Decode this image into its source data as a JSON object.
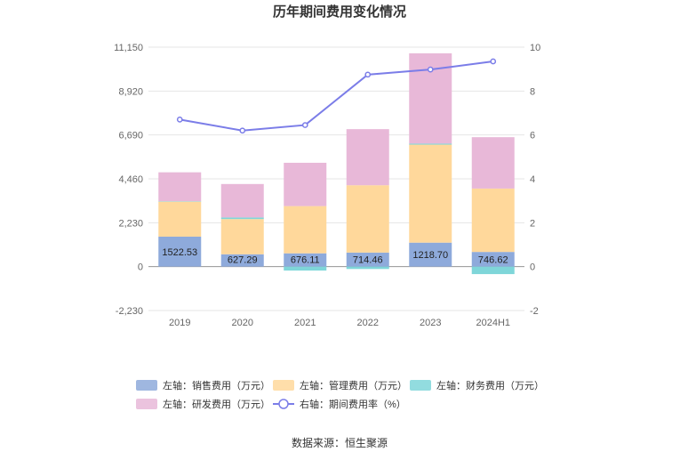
{
  "chart_data": {
    "type": "bar",
    "title": "历年期间费用变化情况",
    "categories": [
      "2019",
      "2020",
      "2021",
      "2022",
      "2023",
      "2024H1"
    ],
    "stacked": true,
    "y_left": {
      "min": -2230,
      "max": 11150,
      "ticks": [
        "-2,230",
        "0",
        "2,230",
        "4,460",
        "6,690",
        "8,920",
        "11,150"
      ]
    },
    "y_right": {
      "min": -2,
      "max": 10,
      "ticks": [
        "-2",
        "0",
        "2",
        "4",
        "6",
        "8",
        "10"
      ]
    },
    "series": [
      {
        "name": "左轴：销售费用（万元）",
        "color": "#8eaadb",
        "values": [
          1522.53,
          627.29,
          676.11,
          714.46,
          1218.7,
          746.62
        ]
      },
      {
        "name": "左轴：管理费用（万元）",
        "color": "#ffd89b",
        "values": [
          1780,
          1790,
          2400,
          3420,
          4980,
          3220
        ]
      },
      {
        "name": "左轴：财务费用（万元）",
        "color": "#7fd6d9",
        "values": [
          20,
          80,
          -200,
          -120,
          50,
          -380
        ]
      },
      {
        "name": "左轴：研发费用（万元）",
        "color": "#e8b8d8",
        "values": [
          1470,
          1700,
          2200,
          2850,
          4590,
          2610
        ]
      },
      {
        "name": "右轴：期间费用率（%）",
        "type": "line",
        "axis": "right",
        "color": "#7b7de8",
        "values": [
          6.7,
          6.2,
          6.45,
          8.75,
          8.98,
          9.35
        ]
      }
    ],
    "bar_labels": [
      "1522.53",
      "627.29",
      "676.11",
      "714.46",
      "1218.70",
      "746.62"
    ],
    "source": "数据来源：恒生聚源"
  }
}
